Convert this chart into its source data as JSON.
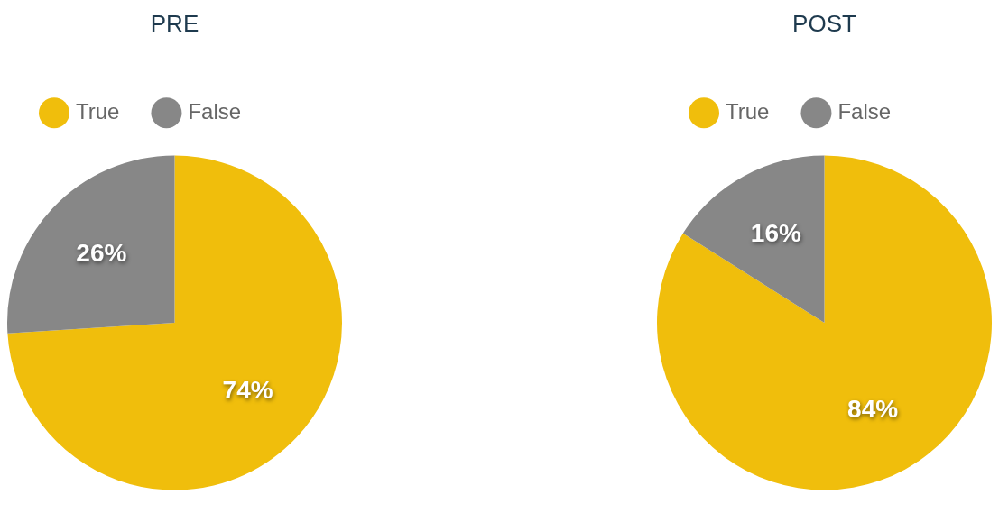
{
  "chart_data": [
    {
      "type": "pie",
      "title": "PRE",
      "categories": [
        "True",
        "False"
      ],
      "values": [
        74,
        26
      ],
      "colors": [
        "#f0be0c",
        "#878787"
      ],
      "value_labels": [
        "74%",
        "26%"
      ],
      "legend": "top left"
    },
    {
      "type": "pie",
      "title": "POST",
      "categories": [
        "True",
        "False"
      ],
      "values": [
        84,
        16
      ],
      "colors": [
        "#f0be0c",
        "#878787"
      ],
      "value_labels": [
        "84%",
        "16%"
      ],
      "legend": "top left"
    }
  ]
}
